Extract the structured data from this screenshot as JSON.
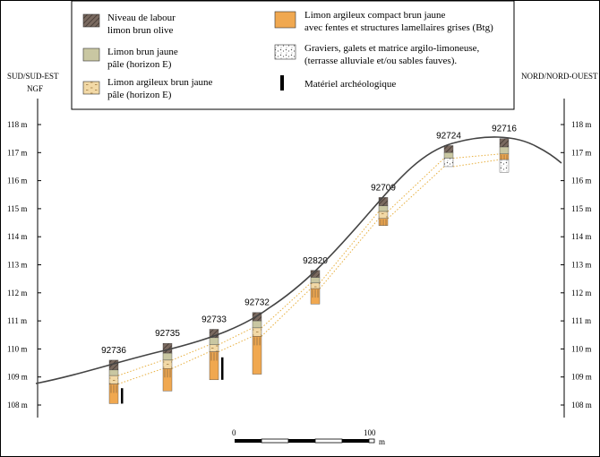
{
  "legend": {
    "items": [
      {
        "key": "labour",
        "lines": [
          "Niveau de labour",
          "limon brun olive"
        ]
      },
      {
        "key": "limon_e",
        "lines": [
          "Limon brun jaune",
          "pâle (horizon E)"
        ]
      },
      {
        "key": "limon_arg_e",
        "lines": [
          "Limon argileux brun jaune",
          "pâle (horizon E)"
        ]
      },
      {
        "key": "btg",
        "lines": [
          "Limon argileux compact brun jaune",
          "avec fentes et structures lamellaires grises (Btg)"
        ]
      },
      {
        "key": "graviers",
        "lines": [
          "Graviers, galets et matrice argilo-limoneuse,",
          "(terrasse alluviale et/ou sables fauves)."
        ]
      },
      {
        "key": "archeo",
        "lines": [
          "Matériel archéologique"
        ]
      }
    ]
  },
  "orientation": {
    "left": "SUD/SUD-EST",
    "right": "NORD/NORD-OUEST",
    "datum": "NGF"
  },
  "axis": {
    "unit": "m",
    "min": 108,
    "max": 118,
    "ticks": [
      "108 m",
      "109 m",
      "110 m",
      "111 m",
      "112 m",
      "113 m",
      "114 m",
      "115 m",
      "116 m",
      "117 m",
      "118 m"
    ]
  },
  "scale_bar": {
    "start": "0",
    "end": "100",
    "unit": "m"
  },
  "colors": {
    "labour": "#7a6a60",
    "limon_e": "#c9c7a2",
    "limon_arg_e": "#f2d9a6",
    "btg": "#f0a850",
    "gravel": "#ffffff",
    "profile": "#333333",
    "correlation": "#e8b040"
  },
  "chart_data": {
    "type": "diagram",
    "y_unit": "m NGF",
    "ylim": [
      108,
      118
    ],
    "boreholes": [
      {
        "id": "92736",
        "top": 109.6,
        "bottom": 108.05,
        "archeo": true,
        "layers": [
          {
            "type": "labour",
            "h": 0.35
          },
          {
            "type": "limon_e",
            "h": 0.2
          },
          {
            "type": "limon_arg_e",
            "h": 0.3
          },
          {
            "type": "btg",
            "h": 0.7
          }
        ]
      },
      {
        "id": "92735",
        "top": 110.2,
        "bottom": 108.5,
        "layers": [
          {
            "type": "labour",
            "h": 0.35
          },
          {
            "type": "limon_e",
            "h": 0.25
          },
          {
            "type": "limon_arg_e",
            "h": 0.3
          },
          {
            "type": "btg",
            "h": 0.8
          }
        ]
      },
      {
        "id": "92733",
        "top": 110.7,
        "bottom": 108.9,
        "archeo": true,
        "layers": [
          {
            "type": "labour",
            "h": 0.3
          },
          {
            "type": "limon_e",
            "h": 0.25
          },
          {
            "type": "limon_arg_e",
            "h": 0.25
          },
          {
            "type": "btg",
            "h": 1.0
          }
        ]
      },
      {
        "id": "92732",
        "top": 111.3,
        "bottom": 109.1,
        "layers": [
          {
            "type": "labour",
            "h": 0.3
          },
          {
            "type": "limon_e",
            "h": 0.25
          },
          {
            "type": "limon_arg_e",
            "h": 0.3
          },
          {
            "type": "btg",
            "h": 1.35
          }
        ]
      },
      {
        "id": "92820",
        "top": 112.8,
        "bottom": 111.6,
        "layers": [
          {
            "type": "labour",
            "h": 0.25
          },
          {
            "type": "limon_e",
            "h": 0.2
          },
          {
            "type": "limon_arg_e",
            "h": 0.2
          },
          {
            "type": "btg",
            "h": 0.55
          }
        ]
      },
      {
        "id": "92709",
        "top": 115.4,
        "bottom": 114.4,
        "layers": [
          {
            "type": "labour",
            "h": 0.3
          },
          {
            "type": "limon_e",
            "h": 0.2
          },
          {
            "type": "limon_arg_e",
            "h": 0.25
          },
          {
            "type": "btg",
            "h": 0.25
          }
        ]
      },
      {
        "id": "92724",
        "top": 117.25,
        "bottom": 116.5,
        "layers": [
          {
            "type": "labour",
            "h": 0.25
          },
          {
            "type": "limon_e",
            "h": 0.2
          },
          {
            "type": "gravel",
            "h": 0.3
          }
        ]
      },
      {
        "id": "92716",
        "top": 117.5,
        "bottom": 116.3,
        "layers": [
          {
            "type": "labour",
            "h": 0.3
          },
          {
            "type": "limon_e",
            "h": 0.25
          },
          {
            "type": "btg",
            "h": 0.2
          },
          {
            "type": "gravel",
            "h": 0.45
          }
        ]
      }
    ]
  }
}
